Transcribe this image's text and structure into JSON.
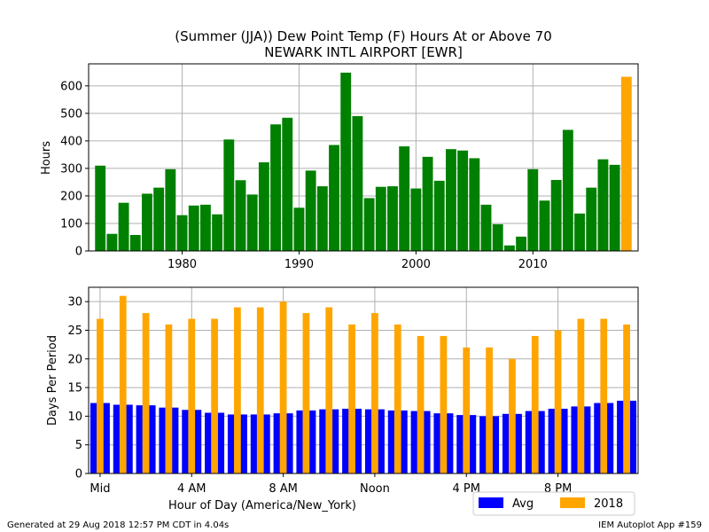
{
  "chart_data": [
    {
      "type": "bar",
      "title_line1": "(Summer (JJA)) Dew Point Temp (F) Hours At or Above 70",
      "title_line2": "NEWARK INTL AIRPORT [EWR]",
      "xlabel": "",
      "ylabel": "Hours",
      "xlim": [
        1972,
        2019
      ],
      "ylim": [
        0,
        680
      ],
      "xticks": [
        1980,
        1990,
        2000,
        2010
      ],
      "yticks": [
        0,
        100,
        200,
        300,
        400,
        500,
        600
      ],
      "grid": true,
      "highlight_year": 2018,
      "colors": {
        "normal": "#008000",
        "highlight": "#ffa500"
      },
      "x": [
        1973,
        1974,
        1975,
        1976,
        1977,
        1978,
        1979,
        1980,
        1981,
        1982,
        1983,
        1984,
        1985,
        1986,
        1987,
        1988,
        1989,
        1990,
        1991,
        1992,
        1993,
        1994,
        1995,
        1996,
        1997,
        1998,
        1999,
        2000,
        2001,
        2002,
        2003,
        2004,
        2005,
        2006,
        2007,
        2008,
        2009,
        2010,
        2011,
        2012,
        2013,
        2014,
        2015,
        2016,
        2017,
        2018
      ],
      "values": [
        310,
        62,
        175,
        58,
        208,
        230,
        297,
        130,
        165,
        168,
        133,
        405,
        257,
        205,
        322,
        460,
        484,
        157,
        292,
        235,
        385,
        648,
        490,
        192,
        233,
        235,
        380,
        227,
        342,
        255,
        370,
        365,
        337,
        168,
        97,
        20,
        52,
        297,
        183,
        258,
        440,
        136,
        230,
        333,
        313,
        633
      ]
    },
    {
      "type": "bar",
      "xlabel": "Hour of Day (America/New_York)",
      "ylabel": "Days Per Period",
      "xlim": [
        -0.5,
        23.5
      ],
      "ylim": [
        0,
        32.5
      ],
      "yticks": [
        0,
        5,
        10,
        15,
        20,
        25,
        30
      ],
      "grid": true,
      "xtick_positions": [
        0,
        4,
        8,
        12,
        16,
        20
      ],
      "xtick_labels": [
        "Mid",
        "4 AM",
        "8 AM",
        "Noon",
        "4 PM",
        "8 PM"
      ],
      "categories": [
        0,
        1,
        2,
        3,
        4,
        5,
        6,
        7,
        8,
        9,
        10,
        11,
        12,
        13,
        14,
        15,
        16,
        17,
        18,
        19,
        20,
        21,
        22,
        23
      ],
      "series": [
        {
          "name": "Avg",
          "color": "#0000ff",
          "values": [
            12.3,
            12.0,
            11.9,
            11.5,
            11.1,
            10.6,
            10.3,
            10.3,
            10.5,
            11.0,
            11.2,
            11.3,
            11.2,
            11.0,
            10.9,
            10.5,
            10.2,
            10.0,
            10.4,
            10.9,
            11.3,
            11.7,
            12.3,
            12.7
          ]
        },
        {
          "name": "2018",
          "color": "#ffa500",
          "values": [
            27,
            31,
            28,
            26,
            27,
            27,
            29,
            29,
            30,
            28,
            29,
            26,
            28,
            26,
            24,
            24,
            22,
            22,
            20,
            24,
            25,
            27,
            27,
            26
          ]
        }
      ],
      "legend": "lower-right"
    }
  ],
  "footer": {
    "left": "Generated at 29 Aug 2018 12:57 PM CDT in 4.04s",
    "right": "IEM Autoplot App #159"
  }
}
